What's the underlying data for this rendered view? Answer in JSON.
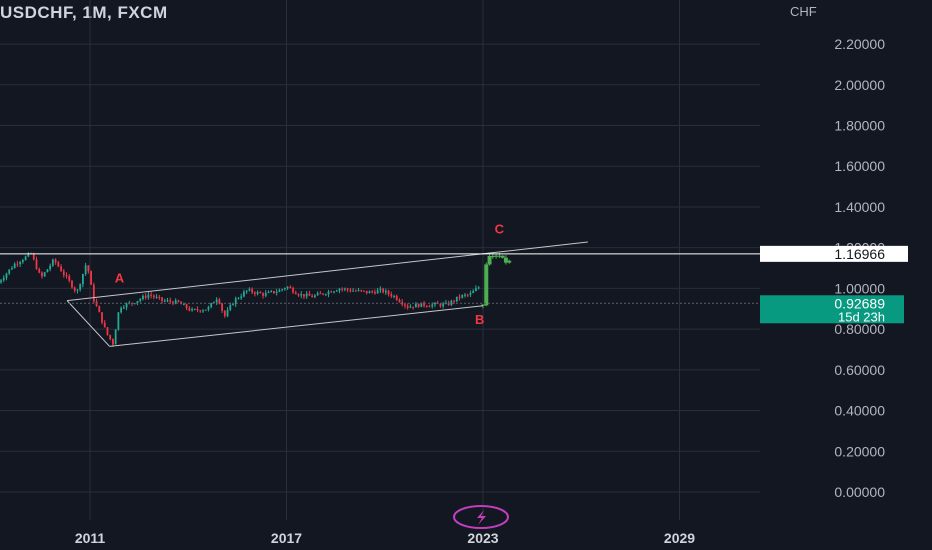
{
  "header": {
    "title": "USDCHF, 1M, FXCM",
    "unit": "CHF"
  },
  "chart_data": {
    "type": "candlestick",
    "symbol": "USDCHF",
    "interval": "1M",
    "source": "FXCM",
    "y_axis": {
      "ticks": [
        2.2,
        2.0,
        1.8,
        1.6,
        1.4,
        1.2,
        1.0,
        0.8,
        0.6,
        0.4,
        0.2,
        0.0
      ],
      "tick_labels": [
        "2.20000",
        "2.00000",
        "1.80000",
        "1.60000",
        "1.40000",
        "1.20000",
        "1.00000",
        "0.80000",
        "0.60000",
        "0.40000",
        "0.20000",
        "0.00000"
      ]
    },
    "x_axis": {
      "tick_labels": [
        "2011",
        "2017",
        "2023",
        "2029"
      ],
      "ticks": [
        2011,
        2017,
        2023,
        2029
      ]
    },
    "grid": true,
    "price_labels": [
      {
        "value": 1.16966,
        "text": "1.16966",
        "style": "line-label",
        "color": "#ffffff"
      },
      {
        "value": 0.92689,
        "text": "0.92689",
        "sub_text": "15d 23h",
        "style": "current-price",
        "color": "#089981"
      }
    ],
    "annotations": [
      {
        "text": "A",
        "x": 2011.9,
        "y": 1.03,
        "color": "#f23645"
      },
      {
        "text": "B",
        "x": 2022.9,
        "y": 0.825,
        "color": "#f23645"
      },
      {
        "text": "C",
        "x": 2023.5,
        "y": 1.27,
        "color": "#f23645"
      }
    ],
    "trendlines": [
      {
        "points": [
          [
            2010.3,
            0.94
          ],
          [
            2023.0,
            1.17
          ]
        ],
        "color": "#c5c7ce"
      },
      {
        "points": [
          [
            2011.6,
            0.715
          ],
          [
            2023.0,
            0.915
          ]
        ],
        "color": "#c5c7ce"
      },
      {
        "points": [
          [
            2023.0,
            1.17
          ],
          [
            2026.2,
            1.228
          ]
        ],
        "color": "#c5c7ce"
      },
      {
        "points": [
          [
            2011.6,
            0.715
          ],
          [
            2010.3,
            0.94
          ]
        ],
        "color": "#c5c7ce"
      }
    ],
    "ohlc_path": [
      [
        2008.2,
        1.03
      ],
      [
        2008.7,
        1.12
      ],
      [
        2009.2,
        1.17
      ],
      [
        2009.5,
        1.05
      ],
      [
        2009.9,
        1.14
      ],
      [
        2010.2,
        1.07
      ],
      [
        2010.6,
        0.98
      ],
      [
        2010.9,
        1.13
      ],
      [
        2011.1,
        0.95
      ],
      [
        2011.3,
        0.87
      ],
      [
        2011.5,
        0.78
      ],
      [
        2011.7,
        0.73
      ],
      [
        2011.9,
        0.91
      ],
      [
        2012.3,
        0.93
      ],
      [
        2012.8,
        0.97
      ],
      [
        2013.2,
        0.94
      ],
      [
        2013.7,
        0.93
      ],
      [
        2014.1,
        0.89
      ],
      [
        2014.6,
        0.9
      ],
      [
        2014.9,
        0.96
      ],
      [
        2015.1,
        0.86
      ],
      [
        2015.4,
        0.94
      ],
      [
        2015.8,
        0.99
      ],
      [
        2016.3,
        0.97
      ],
      [
        2016.8,
        0.99
      ],
      [
        2017.0,
        1.01
      ],
      [
        2017.4,
        0.97
      ],
      [
        2017.8,
        0.96
      ],
      [
        2018.2,
        0.98
      ],
      [
        2018.6,
        1.0
      ],
      [
        2019.0,
        0.99
      ],
      [
        2019.5,
        0.98
      ],
      [
        2019.9,
        0.99
      ],
      [
        2020.3,
        0.96
      ],
      [
        2020.7,
        0.91
      ],
      [
        2021.1,
        0.92
      ],
      [
        2021.5,
        0.92
      ],
      [
        2021.9,
        0.92
      ],
      [
        2022.3,
        0.96
      ],
      [
        2022.6,
        0.97
      ],
      [
        2022.9,
        1.01
      ]
    ],
    "rally_path": [
      [
        2023.0,
        0.92
      ],
      [
        2023.05,
        1.05
      ],
      [
        2023.1,
        1.12
      ],
      [
        2023.2,
        1.15
      ],
      [
        2023.35,
        1.16
      ],
      [
        2023.5,
        1.17
      ],
      [
        2023.65,
        1.13
      ],
      [
        2023.8,
        1.13
      ]
    ]
  }
}
